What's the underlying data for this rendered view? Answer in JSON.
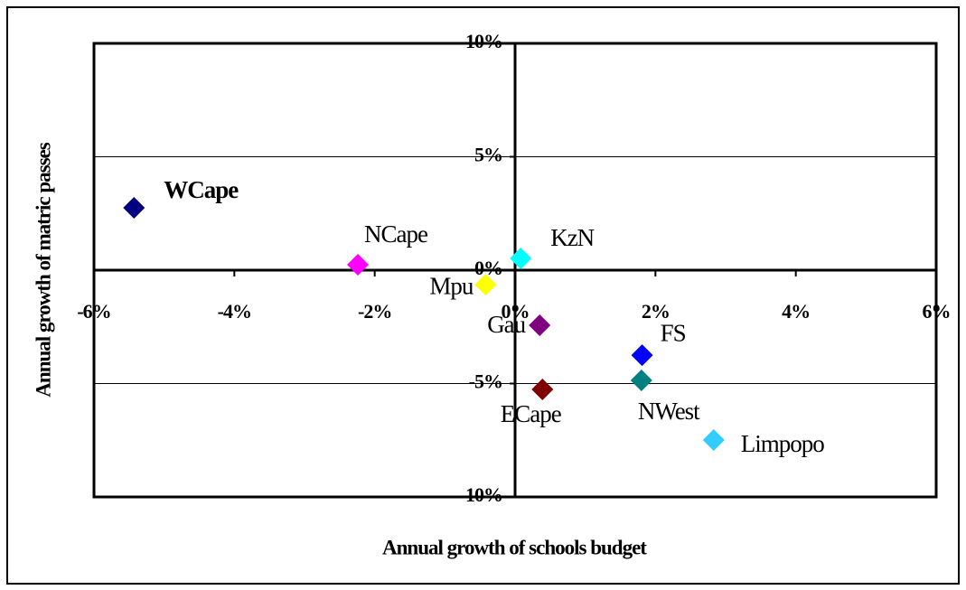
{
  "chart_data": {
    "type": "scatter",
    "xlabel": "Annual growth of schools budget",
    "ylabel": "Annual growth of matric passes",
    "xlim": [
      -6,
      6
    ],
    "xticks": [
      {
        "value": -6,
        "label": "-6%"
      },
      {
        "value": -4,
        "label": "-4%"
      },
      {
        "value": -2,
        "label": "-2%"
      },
      {
        "value": 0,
        "label": "0%"
      },
      {
        "value": 2,
        "label": "2%"
      },
      {
        "value": 4,
        "label": "4%"
      },
      {
        "value": 6,
        "label": "6%"
      }
    ],
    "ylim": [
      -10,
      10
    ],
    "yticks": [
      {
        "value": -10,
        "label": "-10%"
      },
      {
        "value": -5,
        "label": "-5%"
      },
      {
        "value": 0,
        "label": "0%"
      },
      {
        "value": 5,
        "label": "5%"
      },
      {
        "value": 10,
        "label": "10%"
      }
    ],
    "grid": true,
    "series": [
      {
        "name": "WCape",
        "color": "#000080",
        "x": [
          -5.43
        ],
        "values": [
          2.75
        ]
      },
      {
        "name": "NCape",
        "color": "#ff00ff",
        "x": [
          -2.24
        ],
        "values": [
          0.24
        ]
      },
      {
        "name": "KzN",
        "color": "#00ffff",
        "x": [
          0.08
        ],
        "values": [
          0.52
        ]
      },
      {
        "name": "Mpu",
        "color": "#ffff00",
        "x": [
          -0.42
        ],
        "values": [
          -0.64
        ]
      },
      {
        "name": "Gau",
        "color": "#800080",
        "x": [
          0.35
        ],
        "values": [
          -2.43
        ]
      },
      {
        "name": "FS",
        "color": "#0000ff",
        "x": [
          1.81
        ],
        "values": [
          -3.75
        ]
      },
      {
        "name": "NWest",
        "color": "#008080",
        "x": [
          1.8
        ],
        "values": [
          -4.86
        ]
      },
      {
        "name": "ECape",
        "color": "#800000",
        "x": [
          0.39
        ],
        "values": [
          -5.26
        ]
      },
      {
        "name": "Limpopo",
        "color": "#33ccff",
        "x": [
          2.83
        ],
        "values": [
          -7.49
        ]
      }
    ]
  }
}
